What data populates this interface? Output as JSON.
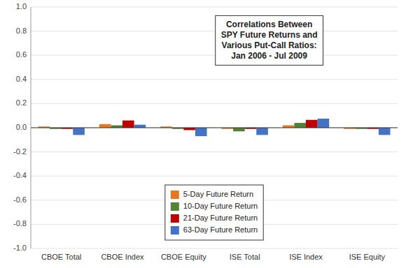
{
  "chart_data": {
    "type": "bar",
    "title": "Correlations Between\nSPY Future Returns and\nVarious Put-Call Ratios:\nJan 2006 - Jul 2009",
    "categories": [
      "CBOE Total",
      "CBOE Index",
      "CBOE Equity",
      "ISE Total",
      "ISE Index",
      "ISE Equity"
    ],
    "series": [
      {
        "name": "5-Day Future Return",
        "color": "#E87722",
        "values": [
          0.01,
          0.03,
          0.01,
          -0.01,
          0.02,
          -0.01
        ]
      },
      {
        "name": "10-Day Future Return",
        "color": "#538135",
        "values": [
          -0.01,
          0.02,
          -0.01,
          -0.03,
          0.04,
          -0.01
        ]
      },
      {
        "name": "21-Day Future Return",
        "color": "#C00000",
        "values": [
          -0.01,
          0.06,
          -0.02,
          -0.01,
          0.065,
          -0.01
        ]
      },
      {
        "name": "63-Day Future Return",
        "color": "#4472C4",
        "values": [
          -0.06,
          0.025,
          -0.07,
          -0.06,
          0.075,
          -0.06
        ]
      }
    ],
    "ylim": [
      -1.0,
      1.0
    ],
    "yticks": [
      {
        "value": -1.0,
        "label": "-1.0"
      },
      {
        "value": -0.8,
        "label": "-0.8"
      },
      {
        "value": -0.6,
        "label": "-0.6"
      },
      {
        "value": -0.4,
        "label": "-0.4"
      },
      {
        "value": -0.2,
        "label": "-0.2"
      },
      {
        "value": 0.0,
        "label": "0.0"
      },
      {
        "value": 0.2,
        "label": "0.2"
      },
      {
        "value": 0.4,
        "label": "0.4"
      },
      {
        "value": 0.6,
        "label": "0.6"
      },
      {
        "value": 0.8,
        "label": "0.8"
      },
      {
        "value": 1.0,
        "label": "1.0"
      }
    ],
    "grid": true,
    "legend": "lower center"
  }
}
